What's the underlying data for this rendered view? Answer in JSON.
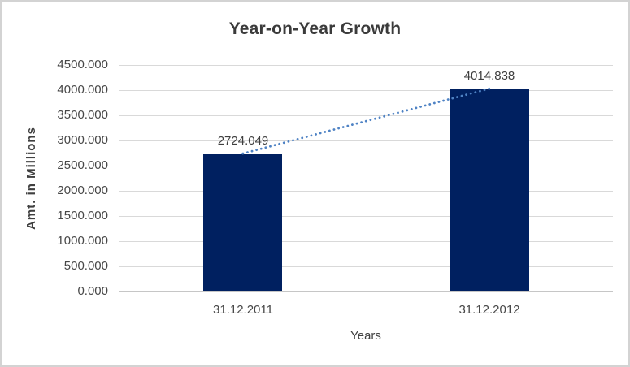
{
  "chart_data": {
    "type": "bar",
    "title": "Year-on-Year Growth",
    "xlabel": "Years",
    "ylabel": "Amt. in Millions",
    "categories": [
      "31.12.2011",
      "31.12.2012"
    ],
    "values": [
      2724.049,
      4014.838
    ],
    "data_labels": [
      "2724.049",
      "4014.838"
    ],
    "ylim": [
      0,
      4500
    ],
    "ytick_values": [
      0,
      500,
      1000,
      1500,
      2000,
      2500,
      3000,
      3500,
      4000,
      4500
    ],
    "ytick_labels": [
      "0.000",
      "500.000",
      "1000.000",
      "1500.000",
      "2000.000",
      "2500.000",
      "3000.000",
      "3500.000",
      "4000.000",
      "4500.000"
    ],
    "grid": true,
    "legend": false,
    "trendline": {
      "type": "linear",
      "style": "dotted",
      "color": "#4e82c4",
      "connects": [
        "31.12.2011",
        "31.12.2012"
      ]
    },
    "colors": {
      "bar": "#002060",
      "gridline": "#d9d9d9",
      "axis_line": "#c6c6c6",
      "text": "#474747",
      "title_text": "#3b3b3b",
      "frame_border": "#d3d3d3",
      "background": "#ffffff"
    }
  }
}
